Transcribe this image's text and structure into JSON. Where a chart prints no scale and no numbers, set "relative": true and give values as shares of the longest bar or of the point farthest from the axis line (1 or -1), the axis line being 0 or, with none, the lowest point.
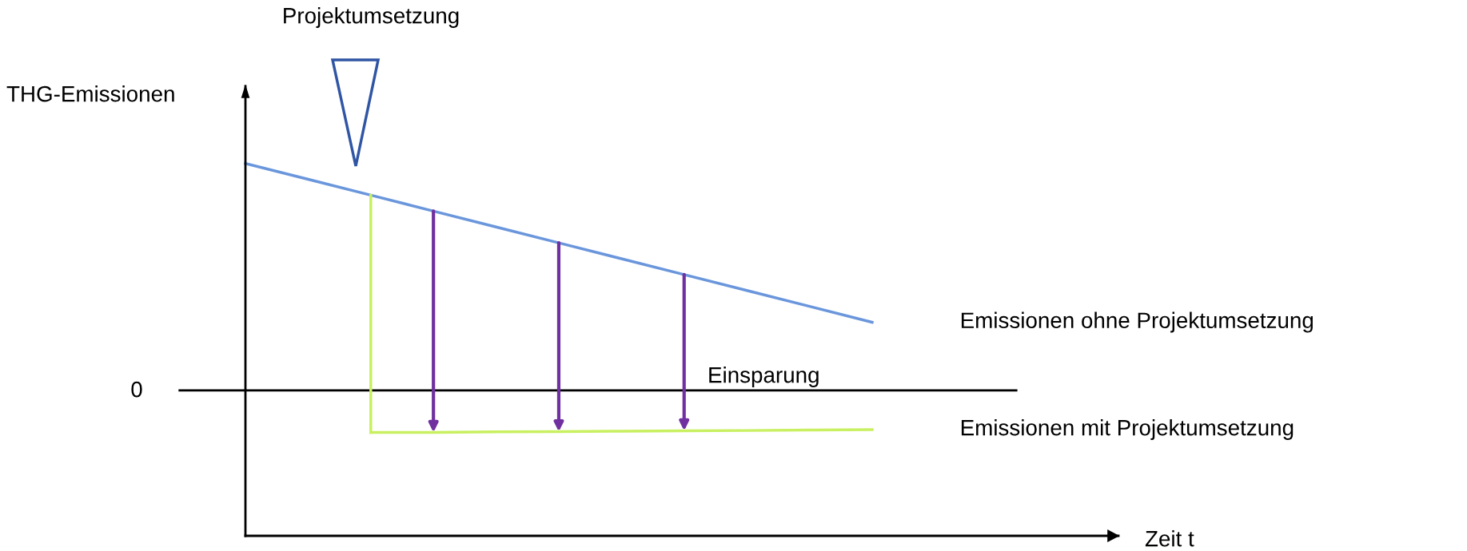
{
  "chart_data": {
    "type": "line",
    "relative": true,
    "ylabel": "THG-Emissionen",
    "categories": [
      null,
      null,
      null,
      null,
      null,
      null,
      null,
      null,
      null,
      null,
      null
    ],
    "annotations": [
      "0",
      "Projektumsetzung",
      "Einsparung",
      "Zeit t"
    ],
    "series": [
      {
        "name": "Emissionen ohne Projektumsetzung",
        "color": "#6a96dc",
        "values": [
          1,
          0.93,
          0.86,
          0.79,
          0.72,
          0.65,
          0.58,
          0.51,
          0.44,
          0.37,
          0.3
        ]
      },
      {
        "name": "Emissionen mit Projektumsetzung",
        "color": "#c8f060",
        "values": [
          null,
          null,
          -0.185,
          -0.185,
          -0.183,
          -0.182,
          -0.18,
          -0.178,
          -0.177,
          -0.175,
          -0.173
        ]
      }
    ]
  }
}
